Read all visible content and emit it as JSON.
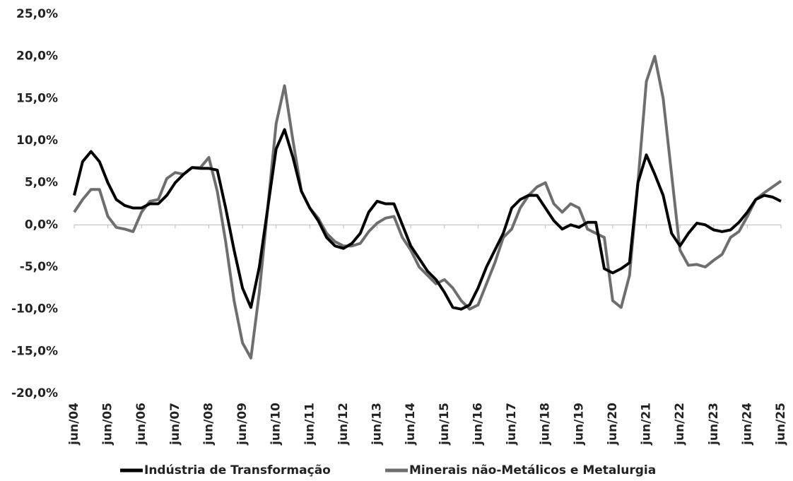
{
  "chart_data": {
    "type": "line",
    "categories": [
      "jun/04",
      null,
      null,
      null,
      "jun/05",
      null,
      null,
      null,
      "jun/06",
      null,
      null,
      null,
      "jun/07",
      null,
      null,
      null,
      "jun/08",
      null,
      null,
      null,
      "jun/09",
      null,
      null,
      null,
      "jun/10",
      null,
      null,
      null,
      "jun/11",
      null,
      null,
      null,
      "jun/12",
      null,
      null,
      null,
      "jun/13",
      null,
      null,
      null,
      "jun/14",
      null,
      null,
      null,
      "jun/15",
      null,
      null,
      null,
      "jun/16",
      null,
      null,
      null,
      "jun/17",
      null,
      null,
      null,
      "jun/18",
      null,
      null,
      null,
      "jun/19",
      null,
      null,
      null,
      "jun/20",
      null,
      null,
      null,
      "jun/21",
      null,
      null,
      null,
      "jun/22",
      null,
      null,
      null,
      "jun/23",
      null,
      null,
      null,
      "jun/24",
      null,
      null,
      null,
      "jun/25"
    ],
    "series": [
      {
        "name": "Indústria de Transformação",
        "color": "#000000",
        "values": [
          3.5,
          7.5,
          8.7,
          7.5,
          5,
          3,
          2.3,
          2,
          2,
          2.5,
          2.5,
          3.5,
          5,
          6,
          6.8,
          6.7,
          6.7,
          6.5,
          2,
          -3,
          -7.5,
          -9.8,
          -5,
          2,
          9,
          11.3,
          8,
          4,
          2,
          0.5,
          -1.5,
          -2.5,
          -2.8,
          -2.2,
          -1,
          1.5,
          2.8,
          2.5,
          2.5,
          0,
          -2.5,
          -4,
          -5.5,
          -6.5,
          -8,
          -9.8,
          -10,
          -9.5,
          -7.5,
          -5,
          -3,
          -1,
          2,
          3,
          3.5,
          3.5,
          2,
          0.5,
          -0.5,
          0,
          -0.3,
          0.3,
          0.3,
          -5.2,
          -5.7,
          -5.2,
          -4.5,
          5,
          8.3,
          6,
          3.5,
          -1,
          -2.5,
          -1,
          0.2,
          0,
          -0.6,
          -0.8,
          -0.6,
          0.3,
          1.5,
          3,
          3.5,
          3.3,
          2.8
        ]
      },
      {
        "name": "Minerais não-Metálicos e Metalurgia",
        "color": "#6e6e6e",
        "values": [
          1.5,
          3,
          4.2,
          4.2,
          1,
          -0.3,
          -0.5,
          -0.8,
          1.5,
          2.8,
          3,
          5.5,
          6.2,
          6,
          6.8,
          6.8,
          8,
          4,
          -2,
          -9,
          -14,
          -15.8,
          -8,
          2,
          12,
          16.5,
          10,
          4,
          2,
          0.8,
          -1,
          -2,
          -2.5,
          -2.5,
          -2.2,
          -0.8,
          0.2,
          0.8,
          1,
          -1.5,
          -3,
          -5,
          -6,
          -7,
          -6.5,
          -7.5,
          -9,
          -10,
          -9.5,
          -7,
          -4.5,
          -1.5,
          -0.5,
          2,
          3.5,
          4.5,
          5,
          2.5,
          1.5,
          2.5,
          2,
          -0.5,
          -1,
          -1.5,
          -9,
          -9.8,
          -6,
          5,
          17,
          20,
          15,
          6,
          -3,
          -4.8,
          -4.7,
          -5,
          -4.2,
          -3.5,
          -1.5,
          -0.8,
          1,
          3,
          3.8,
          4.5,
          5.2
        ]
      }
    ],
    "ylim": [
      -20,
      25
    ],
    "yticks": [
      {
        "value": -20,
        "label": "-20,0%"
      },
      {
        "value": -15,
        "label": "-15,0%"
      },
      {
        "value": -10,
        "label": "-10,0%"
      },
      {
        "value": -5,
        "label": "-5,0%"
      },
      {
        "value": 0,
        "label": "0,0%"
      },
      {
        "value": 5,
        "label": "5,0%"
      },
      {
        "value": 10,
        "label": "10,0%"
      },
      {
        "value": 15,
        "label": "15,0%"
      },
      {
        "value": 20,
        "label": "20,0%"
      },
      {
        "value": 25,
        "label": "25,0%"
      }
    ],
    "grid": false,
    "legend": "bottom"
  }
}
